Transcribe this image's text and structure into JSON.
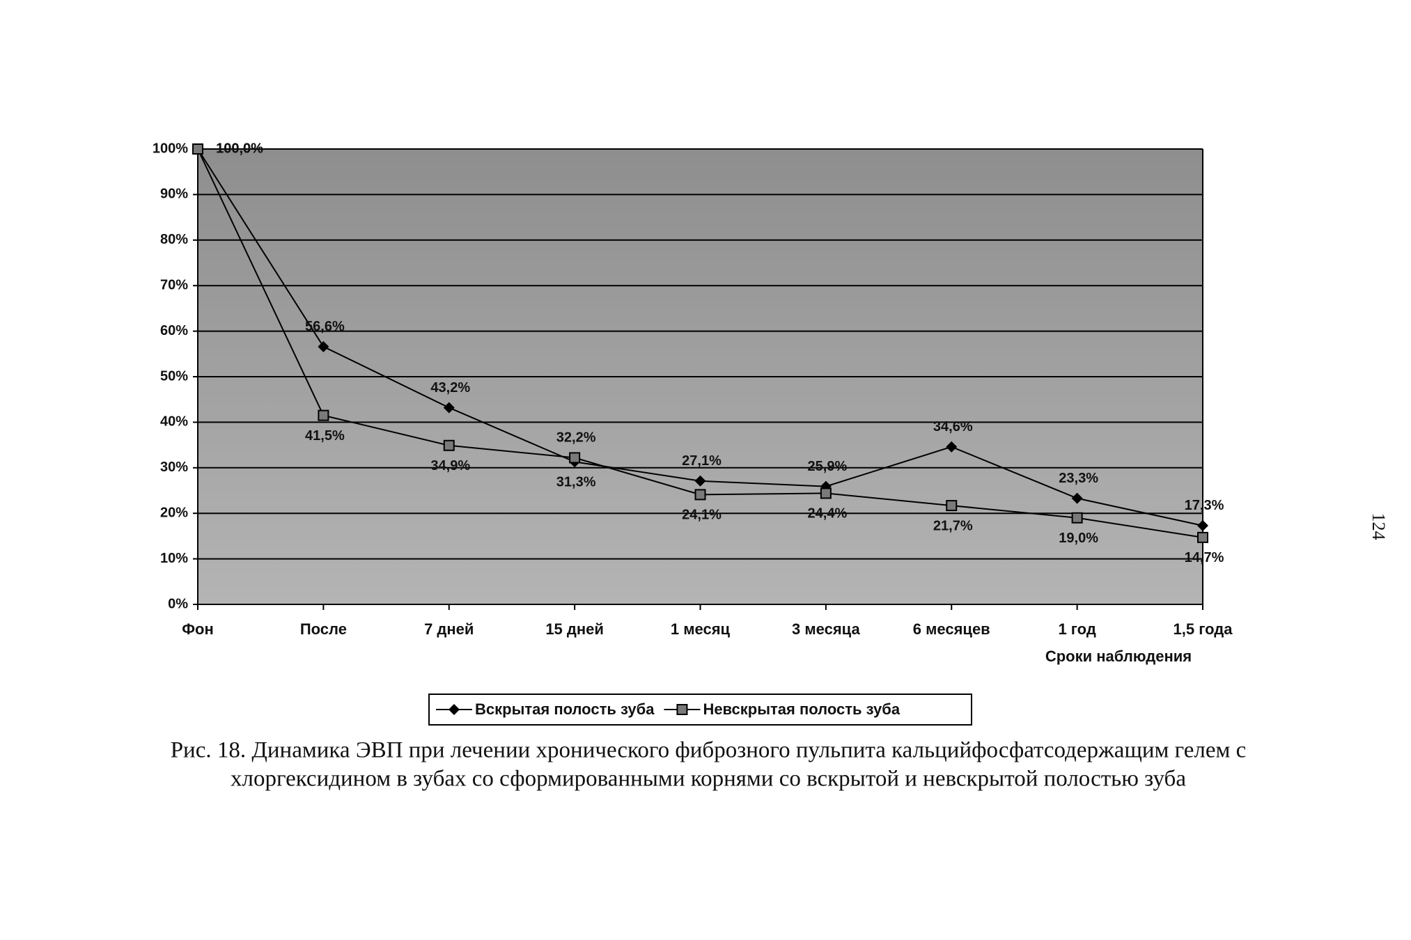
{
  "chart_data": {
    "type": "line",
    "x_label": "Сроки наблюдения",
    "categories": [
      "Фон",
      "После",
      "7 дней",
      "15 дней",
      "1 месяц",
      "3 месяца",
      "6 месяцев",
      "1 год",
      "1,5 года"
    ],
    "series": [
      {
        "name": "Вскрытая полость зуба",
        "color": "#000000",
        "marker": "diamond",
        "values": [
          100,
          56.6,
          43.2,
          31.3,
          27.1,
          25.9,
          34.6,
          23.3,
          17.3
        ],
        "value_labels": [
          "100,0%",
          "56,6%",
          "43,2%",
          "31,3%",
          "27,1%",
          "25,9%",
          "34,6%",
          "23,3%",
          "17,3%"
        ]
      },
      {
        "name": "Невскрытая полость зуба",
        "color": "#000000",
        "marker": "square",
        "values": [
          100,
          41.5,
          34.9,
          32.2,
          24.1,
          24.4,
          21.7,
          19.0,
          14.7
        ],
        "value_labels": [
          "100,0%",
          "41,5%",
          "34,9%",
          "32,2%",
          "24,1%",
          "24,4%",
          "21,7%",
          "19,0%",
          "14,7%"
        ]
      }
    ],
    "ylim": [
      0,
      100
    ],
    "yticks": [
      {
        "value": 0,
        "label": "0%"
      },
      {
        "value": 10,
        "label": "10%"
      },
      {
        "value": 20,
        "label": "20%"
      },
      {
        "value": 30,
        "label": "30%"
      },
      {
        "value": 40,
        "label": "40%"
      },
      {
        "value": 50,
        "label": "50%"
      },
      {
        "value": 60,
        "label": "60%"
      },
      {
        "value": 70,
        "label": "70%"
      },
      {
        "value": 80,
        "label": "80%"
      },
      {
        "value": 90,
        "label": "90%"
      },
      {
        "value": 100,
        "label": "100%"
      }
    ],
    "grid": true,
    "legend": "bottom"
  },
  "caption": [
    "Рис. 18. Динамика ЭВП при лечении хронического фиброзного пульпита кальцийфосфатсодержащим гелем с",
    "хлоргексидином в зубах со сформированными корнями со вскрытой и невскрытой полостью зуба"
  ],
  "page_number": "124"
}
